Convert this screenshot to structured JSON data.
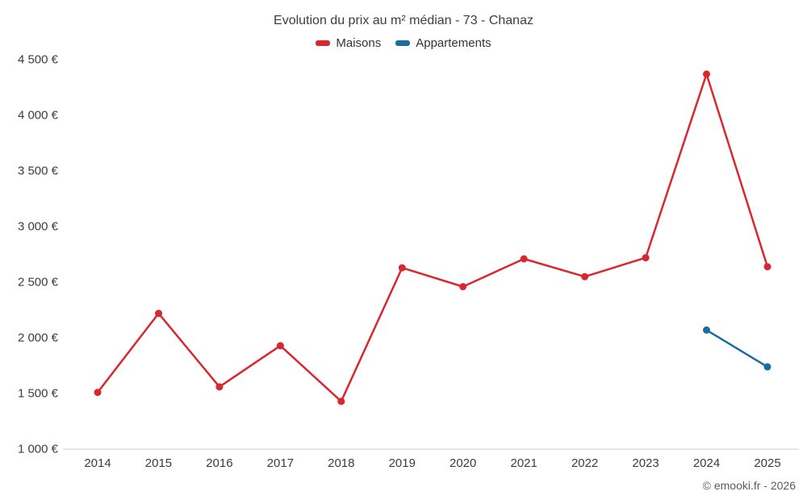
{
  "title": "Evolution du prix au m² médian - 73 - Chanaz",
  "copyright": "© emooki.fr - 2026",
  "legend": {
    "items": [
      {
        "label": "Maisons",
        "color": "#d7282f"
      },
      {
        "label": "Appartements",
        "color": "#1b6d9f"
      }
    ]
  },
  "chart_data": {
    "type": "line",
    "title": "Evolution du prix au m² médian - 73 - Chanaz",
    "categories": [
      "2014",
      "2015",
      "2016",
      "2017",
      "2018",
      "2019",
      "2020",
      "2021",
      "2022",
      "2023",
      "2024",
      "2025"
    ],
    "series": [
      {
        "name": "Maisons",
        "color": "#d7282f",
        "values": [
          1510,
          2220,
          1560,
          1930,
          1430,
          2630,
          2460,
          2710,
          2550,
          2720,
          4370,
          2640
        ]
      },
      {
        "name": "Appartements",
        "color": "#1b6d9f",
        "values": [
          null,
          null,
          null,
          null,
          null,
          null,
          null,
          null,
          null,
          null,
          2070,
          1740
        ]
      }
    ],
    "xlabel": "",
    "ylabel": "",
    "ylim": [
      1000,
      4500
    ],
    "yticks": {
      "values": [
        1000,
        1500,
        2000,
        2500,
        3000,
        3500,
        4000,
        4500
      ],
      "labels": [
        "1 000 €",
        "1 500 €",
        "2 000 €",
        "2 500 €",
        "3 000 €",
        "3 500 €",
        "4 000 €",
        "4 500 €"
      ]
    },
    "grid": false,
    "legend_position": "top",
    "marker_radius": 4.5,
    "line_width": 2.5,
    "axis_line_color": "#d0d0d0"
  }
}
